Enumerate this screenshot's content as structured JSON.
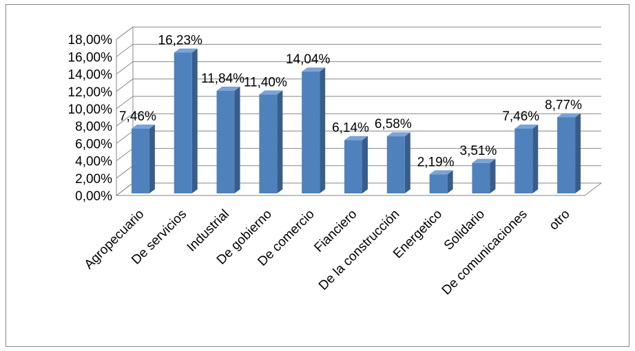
{
  "chart_data": {
    "type": "bar",
    "style": "3d-column",
    "categories": [
      "Agropecuario",
      "De servicios",
      "Industrial",
      "De gobierno",
      "De comercio",
      "Fianciero",
      "De la construcción",
      "Energetico",
      "Solidario",
      "De comunicaciones",
      "otro"
    ],
    "values": [
      7.46,
      16.23,
      11.84,
      11.4,
      14.04,
      6.14,
      6.58,
      2.19,
      3.51,
      7.46,
      8.77
    ],
    "data_labels": [
      "7,46%",
      "16,23%",
      "11,84%",
      "11,40%",
      "14,04%",
      "6,14%",
      "6,58%",
      "2,19%",
      "3,51%",
      "7,46%",
      "8,77%"
    ],
    "y_ticks": [
      0,
      2,
      4,
      6,
      8,
      10,
      12,
      14,
      16,
      18
    ],
    "y_tick_labels": [
      "0,00%",
      "2,00%",
      "4,00%",
      "6,00%",
      "8,00%",
      "10,00%",
      "12,00%",
      "14,00%",
      "16,00%",
      "18,00%"
    ],
    "ylim": [
      0,
      18
    ],
    "title": "",
    "xlabel": "",
    "ylabel": "",
    "grid": true,
    "legend": "none",
    "colors": {
      "bar_front": "#4f81bd",
      "bar_side": "#385d8a",
      "bar_top": "#7aa3d6",
      "grid": "#868686"
    }
  }
}
